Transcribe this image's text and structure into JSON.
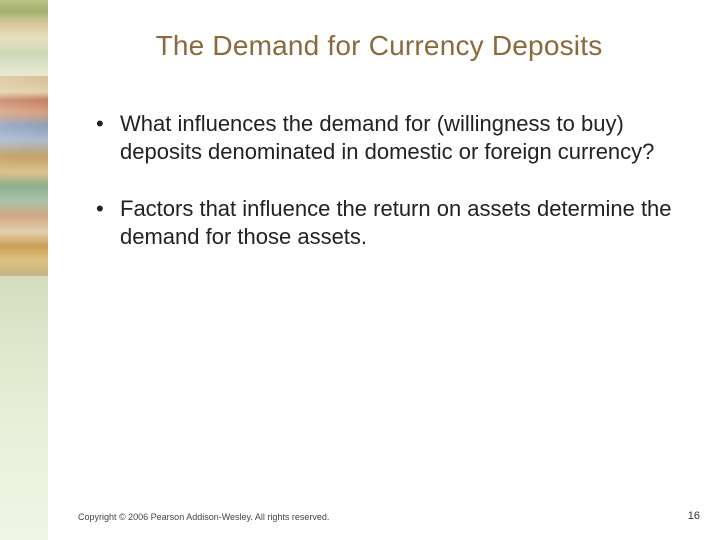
{
  "title": "The Demand for Currency Deposits",
  "bullets": [
    "What influences the demand for (willingness to buy) deposits denominated in domestic or foreign currency?",
    "Factors that influence the return on assets determine the demand for those assets."
  ],
  "copyright": "Copyright © 2006 Pearson Addison-Wesley. All rights reserved.",
  "page_number": "16",
  "colors": {
    "title_color": "#8a6a3c",
    "body_text_color": "#222222",
    "background": "#ffffff"
  }
}
